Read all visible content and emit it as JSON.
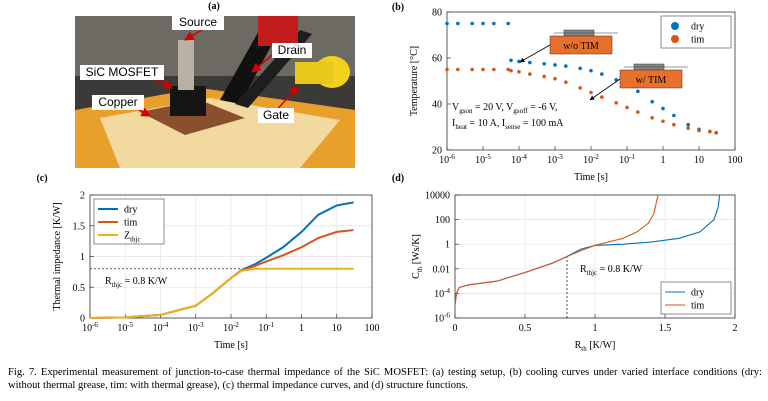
{
  "photo": {
    "label": "(a)",
    "annotations": [
      "Source",
      "Drain",
      "SiC MOSFET",
      "Copper",
      "Gate"
    ]
  },
  "chart_data": [
    {
      "type": "scatter",
      "label": "(b)",
      "xlabel": "Time [s]",
      "ylabel": "Temperature [°C]",
      "xlog": true,
      "xlim": [
        1e-06,
        100
      ],
      "xticks": [
        {
          "value": 1e-06,
          "label": "10",
          "exponent": "-6"
        },
        {
          "value": 1e-05,
          "label": "10",
          "exponent": "-5"
        },
        {
          "value": 0.0001,
          "label": "10",
          "exponent": "-4"
        },
        {
          "value": 0.001,
          "label": "10",
          "exponent": "-3"
        },
        {
          "value": 0.01,
          "label": "10",
          "exponent": "-2"
        },
        {
          "value": 0.1,
          "label": "10",
          "exponent": "-1"
        },
        1,
        10,
        100
      ],
      "ylim": [
        20,
        80
      ],
      "yticks": [
        20,
        40,
        60,
        80
      ],
      "grid": false,
      "legend": "upper right",
      "x": [
        1e-06,
        2e-06,
        5e-06,
        1e-05,
        2e-05,
        5e-05,
        6e-05,
        0.0001,
        0.0002,
        0.0005,
        0.001,
        0.002,
        0.005,
        0.01,
        0.02,
        0.05,
        0.1,
        0.2,
        0.5,
        1,
        2,
        5,
        10,
        20,
        30
      ],
      "series": [
        {
          "name": "dry",
          "color": "#0072bd",
          "values": [
            75,
            75,
            75,
            75,
            75,
            75,
            59,
            58.5,
            58,
            57.5,
            57,
            56.5,
            55.5,
            54.5,
            53,
            50.5,
            48,
            45.5,
            41,
            38,
            35,
            31,
            29,
            28,
            27.5
          ]
        },
        {
          "name": "tim",
          "color": "#d95319",
          "values": [
            55,
            55,
            55,
            55,
            55,
            55,
            54.5,
            54,
            53,
            52,
            51,
            49.5,
            47,
            45,
            43,
            40.5,
            38.5,
            36.5,
            34,
            32.5,
            31,
            29.5,
            28.5,
            28,
            27.5
          ]
        }
      ],
      "annotations": [
        "w/o TIM",
        "w/ TIM"
      ],
      "notes": [
        [
          "V",
          "gson",
          " = 20 V, V",
          "gsoff",
          " = -6 V,"
        ],
        [
          "I",
          "heat",
          " = 10 A, I",
          "sense",
          " = 100 mA"
        ]
      ]
    },
    {
      "type": "line",
      "label": "(c)",
      "xlabel": "Time [s]",
      "ylabel": "Thermal impedance [K/W]",
      "xlog": true,
      "xlim": [
        1e-06,
        100
      ],
      "xticks": [
        {
          "value": 1e-06,
          "label": "10",
          "exponent": "-6"
        },
        {
          "value": 1e-05,
          "label": "10",
          "exponent": "-5"
        },
        {
          "value": 0.0001,
          "label": "10",
          "exponent": "-4"
        },
        {
          "value": 0.001,
          "label": "10",
          "exponent": "-3"
        },
        {
          "value": 0.01,
          "label": "10",
          "exponent": "-2"
        },
        {
          "value": 0.1,
          "label": "10",
          "exponent": "-1"
        },
        1,
        10,
        100
      ],
      "ylim": [
        0,
        2
      ],
      "yticks": [
        0,
        0.5,
        1,
        1.5,
        2
      ],
      "grid": true,
      "legend": "upper left",
      "x": [
        1e-06,
        1e-05,
        0.0001,
        0.001,
        0.003,
        0.01,
        0.02,
        0.05,
        0.1,
        0.3,
        1,
        3,
        10,
        30
      ],
      "series": [
        {
          "name": "dry",
          "color": "#0072bd",
          "values": [
            0,
            0.01,
            0.05,
            0.2,
            0.4,
            0.65,
            0.78,
            0.88,
            0.98,
            1.15,
            1.4,
            1.68,
            1.83,
            1.88
          ]
        },
        {
          "name": "tim",
          "color": "#d95319",
          "values": [
            0,
            0.01,
            0.05,
            0.2,
            0.4,
            0.65,
            0.77,
            0.85,
            0.92,
            1.02,
            1.15,
            1.3,
            1.4,
            1.43
          ]
        },
        {
          "name": "Z",
          "name_sub": "thjc",
          "color": "#edb120",
          "values": [
            0,
            0.01,
            0.05,
            0.2,
            0.4,
            0.65,
            0.77,
            0.8,
            0.8,
            0.8,
            0.8,
            0.8,
            0.8,
            0.8
          ]
        }
      ],
      "ref_line": 0.8,
      "notes": [
        [
          "R",
          "thjc",
          " = 0.8 K/W"
        ]
      ]
    },
    {
      "type": "line",
      "label": "(d)",
      "xlabel": [
        "R",
        "th",
        " [K/W]"
      ],
      "ylabel": [
        "C",
        "th",
        " [Ws/K]"
      ],
      "ylog": true,
      "xlim": [
        0,
        2
      ],
      "xticks": [
        0,
        0.5,
        1,
        1.5,
        2
      ],
      "ylim": [
        1e-06,
        10000
      ],
      "yticks": [
        {
          "value": 1e-06,
          "label": "10",
          "exponent": "-6"
        },
        {
          "value": 0.0001,
          "label": "10",
          "exponent": "-4"
        },
        0.01,
        1,
        100,
        10000
      ],
      "grid": true,
      "legend": "lower right",
      "series": [
        {
          "name": "dry",
          "color": "#0072bd",
          "x": [
            0,
            0.01,
            0.03,
            0.1,
            0.3,
            0.5,
            0.7,
            0.8,
            0.9,
            1.0,
            1.2,
            1.4,
            1.6,
            1.75,
            1.85,
            1.88,
            1.89
          ],
          "values": [
            1e-05,
            0.0001,
            0.0003,
            0.0005,
            0.001,
            0.005,
            0.03,
            0.1,
            0.4,
            0.8,
            1,
            1.5,
            3,
            10,
            100,
            1000,
            10000
          ]
        },
        {
          "name": "tim",
          "color": "#d95319",
          "x": [
            0,
            0.01,
            0.03,
            0.1,
            0.3,
            0.5,
            0.7,
            0.8,
            0.9,
            1.0,
            1.2,
            1.3,
            1.38,
            1.42,
            1.44,
            1.45
          ],
          "values": [
            1e-05,
            0.0001,
            0.0003,
            0.0005,
            0.001,
            0.005,
            0.03,
            0.1,
            0.3,
            0.8,
            3,
            10,
            50,
            300,
            3000,
            10000
          ]
        }
      ],
      "ref_line": 0.8,
      "notes": [
        [
          "R",
          "thjc",
          " = 0.8 K/W"
        ]
      ]
    }
  ],
  "caption": "Fig. 7.  Experimental measurement of junction-to-case thermal impedance of the SiC MOSFET: (a) testing setup, (b) cooling curves under varied interface conditions (dry: without thermal grease, tim: with thermal grease), (c) thermal impedance curves, and (d) structure functions."
}
